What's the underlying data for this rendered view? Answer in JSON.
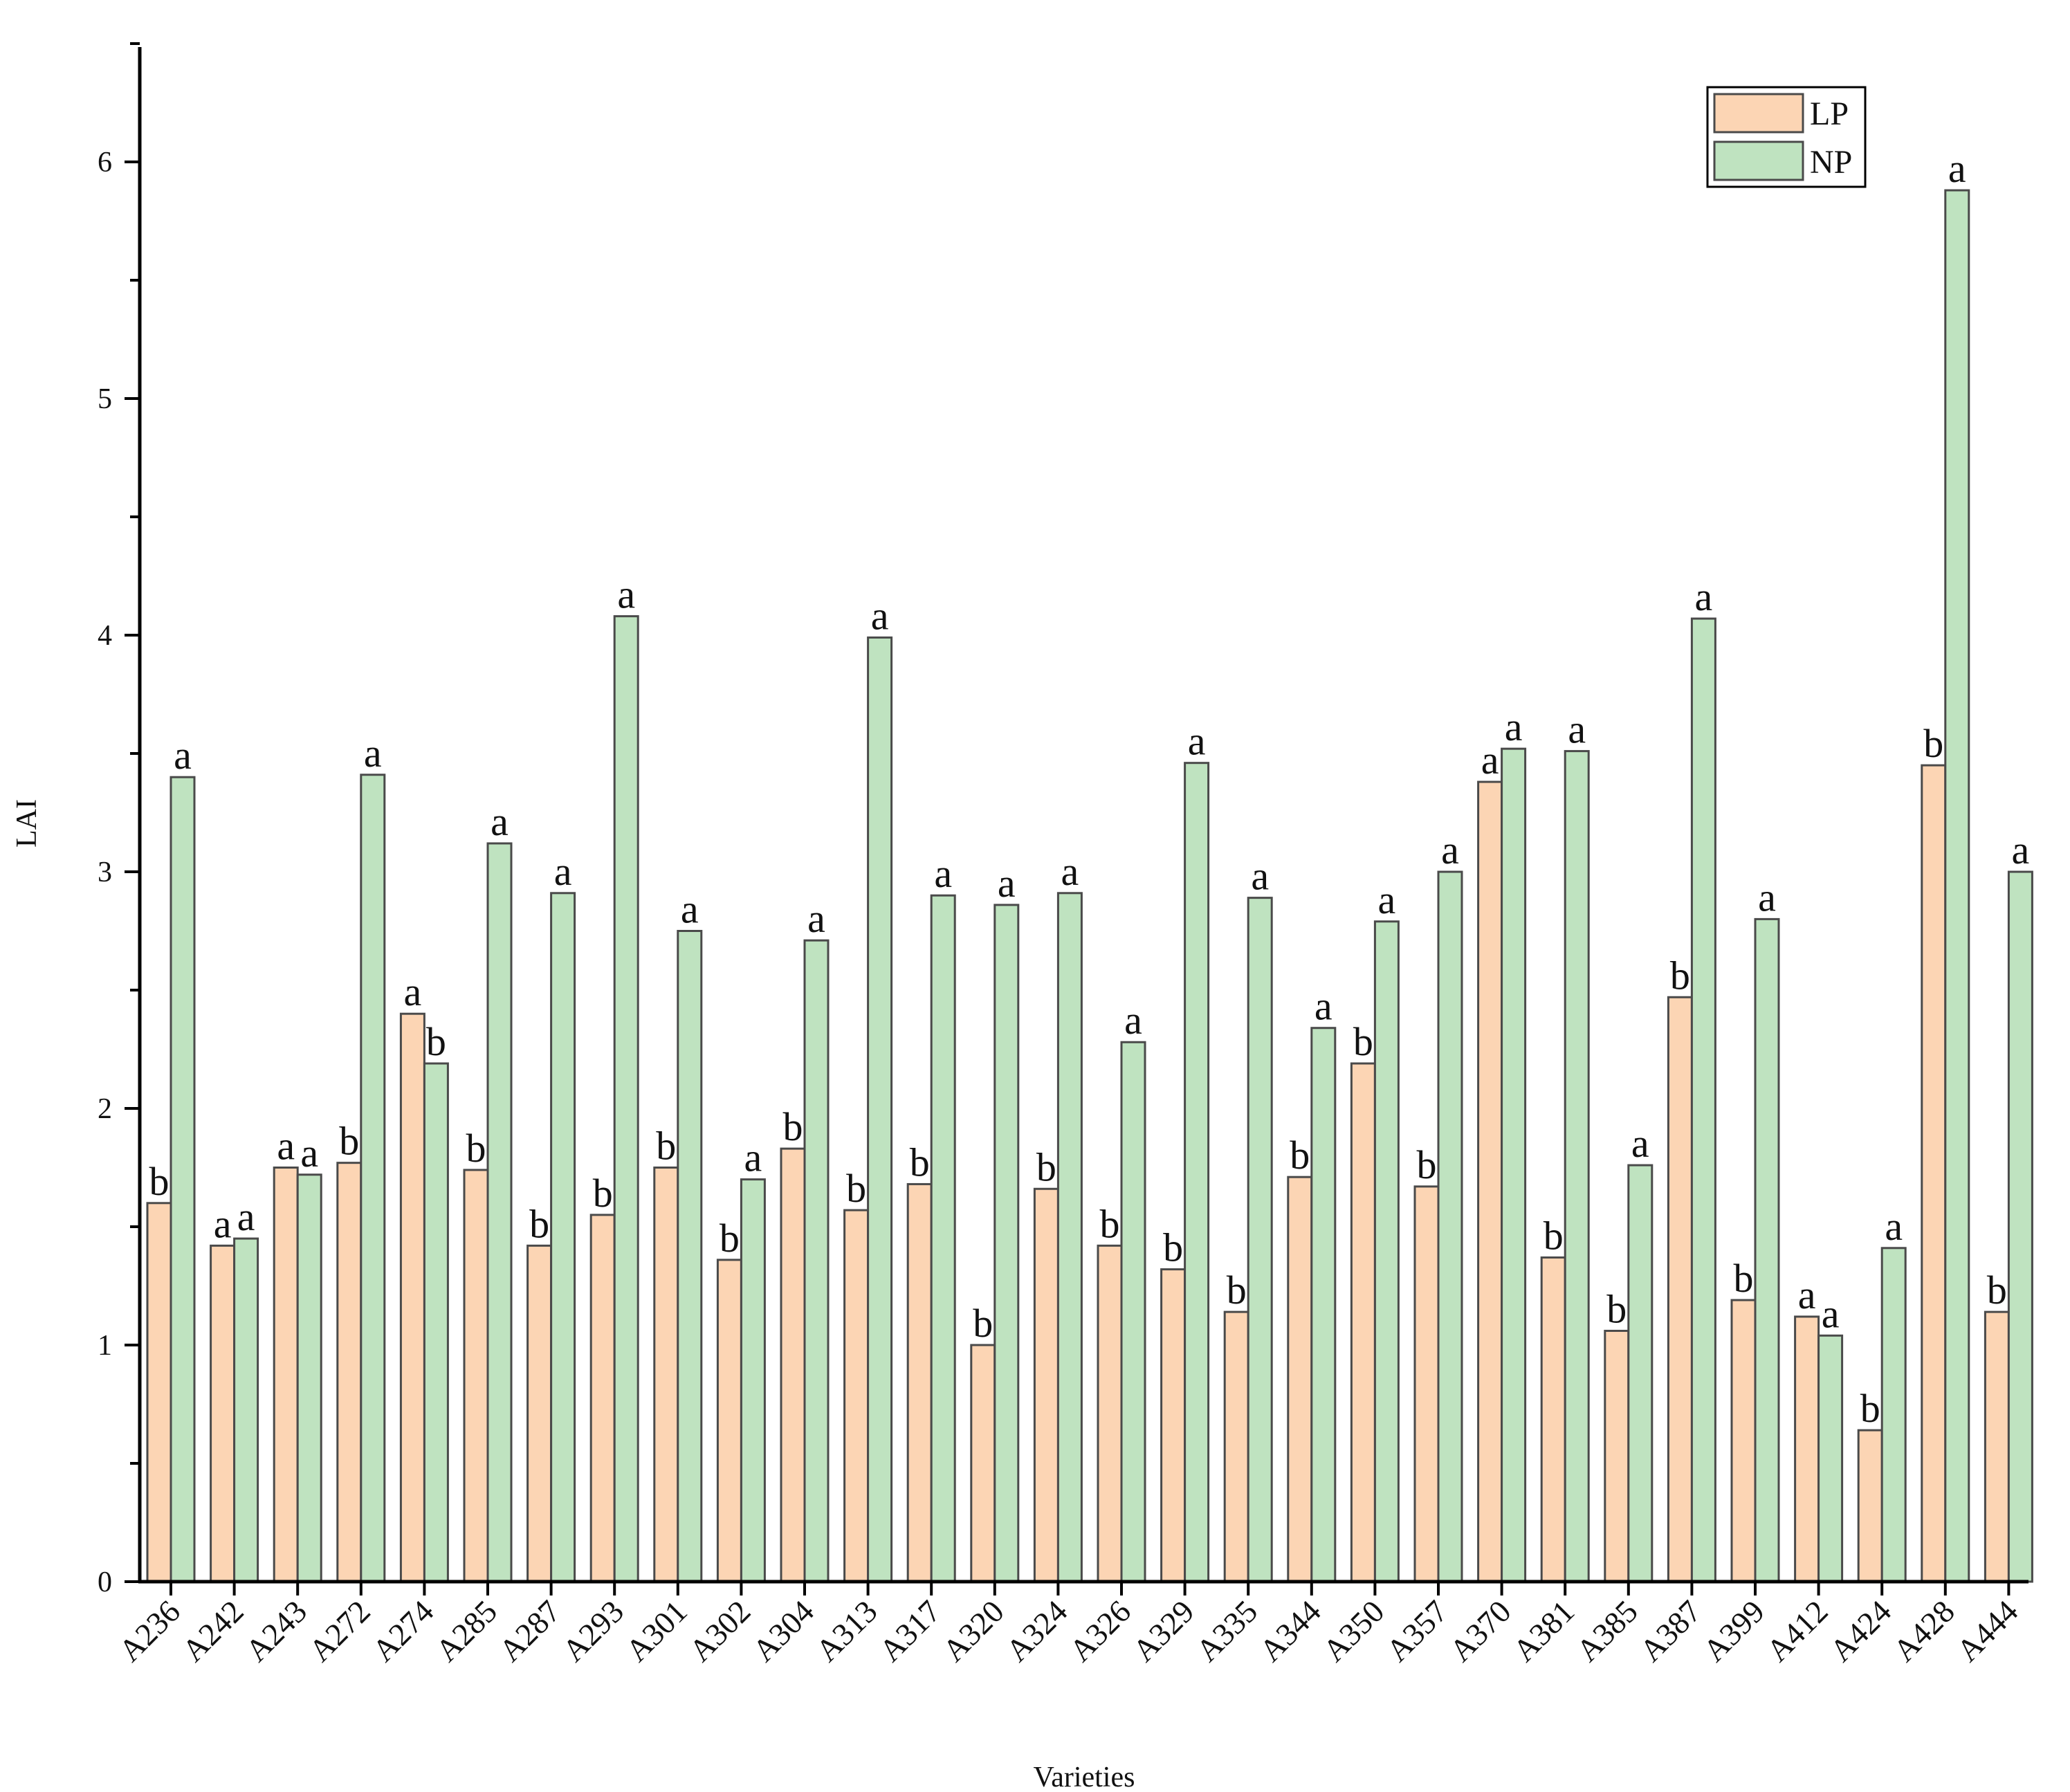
{
  "chart_data": {
    "type": "bar",
    "title": "",
    "xlabel": "Varieties",
    "ylabel": "LAI",
    "ylim": [
      0,
      6.5
    ],
    "yticks": [
      0,
      1,
      2,
      3,
      4,
      5,
      6
    ],
    "grid": false,
    "legend_position": "top-right",
    "colors": {
      "LP": "#fcd5b4",
      "NP": "#bfe3c0",
      "bar_stroke": "#4a4a4a",
      "axis": "#000000"
    },
    "categories": [
      "A236",
      "A242",
      "A243",
      "A272",
      "A274",
      "A285",
      "A287",
      "A293",
      "A301",
      "A302",
      "A304",
      "A313",
      "A317",
      "A320",
      "A324",
      "A326",
      "A329",
      "A335",
      "A344",
      "A350",
      "A357",
      "A370",
      "A381",
      "A385",
      "A387",
      "A399",
      "A412",
      "A424",
      "A428",
      "A444"
    ],
    "series": [
      {
        "name": "LP",
        "values": [
          1.6,
          1.42,
          1.75,
          1.77,
          2.4,
          1.74,
          1.42,
          1.55,
          1.75,
          1.36,
          1.83,
          1.57,
          1.68,
          1.0,
          1.66,
          1.42,
          1.32,
          1.14,
          1.71,
          2.19,
          1.67,
          3.38,
          1.37,
          1.06,
          2.47,
          1.19,
          1.12,
          0.64,
          3.45,
          1.14
        ],
        "labels": [
          "b",
          "a",
          "a",
          "b",
          "a",
          "b",
          "b",
          "b",
          "b",
          "b",
          "b",
          "b",
          "b",
          "b",
          "b",
          "b",
          "b",
          "b",
          "b",
          "b",
          "b",
          "a",
          "b",
          "b",
          "b",
          "b",
          "a",
          "b",
          "b",
          "b"
        ]
      },
      {
        "name": "NP",
        "values": [
          3.4,
          1.45,
          1.72,
          3.41,
          2.19,
          3.12,
          2.91,
          4.08,
          2.75,
          1.7,
          2.71,
          3.99,
          2.9,
          2.86,
          2.91,
          2.28,
          3.46,
          2.89,
          2.34,
          2.79,
          3.0,
          3.52,
          3.51,
          1.76,
          4.07,
          2.8,
          1.04,
          1.41,
          5.88,
          3.0
        ],
        "labels": [
          "a",
          "a",
          "a",
          "a",
          "b",
          "a",
          "a",
          "a",
          "a",
          "a",
          "a",
          "a",
          "a",
          "a",
          "a",
          "a",
          "a",
          "a",
          "a",
          "a",
          "a",
          "a",
          "a",
          "a",
          "a",
          "a",
          "a",
          "a",
          "a",
          "a"
        ]
      }
    ]
  }
}
